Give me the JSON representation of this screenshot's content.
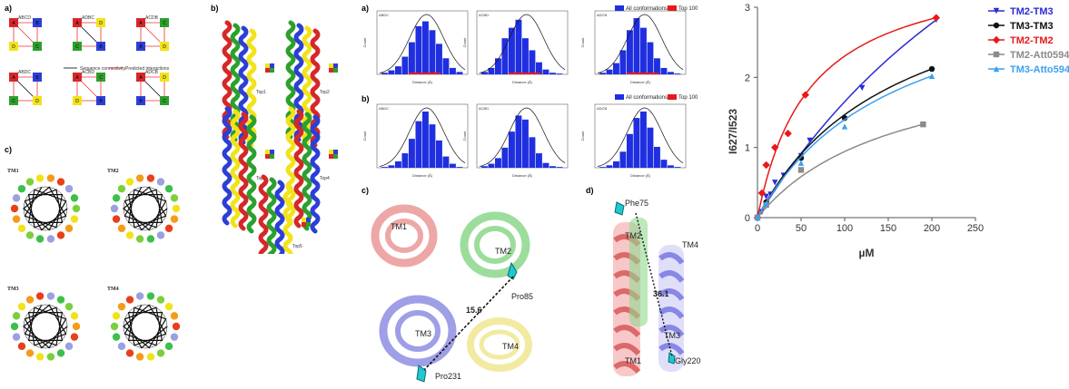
{
  "panel_labels": {
    "top_left": "a)",
    "mid_left": "c)",
    "structures": "b)",
    "hist_top": "a)",
    "hist_bottom": "b)",
    "struct_c": "c)",
    "struct_d": "d)"
  },
  "topology": {
    "top_row": [
      "ABCD",
      "ADBC",
      "ACDB"
    ],
    "bottom_row": [
      "ABDC",
      "ACBD",
      "ADCB"
    ],
    "legend_sequence": "Sequence connectivity",
    "legend_predicted": "Predicted interactions",
    "colors": {
      "A": "#d62728",
      "B": "#2b3fd6",
      "C": "#2ca02c",
      "D": "#f2e21a"
    }
  },
  "wheels": [
    "TM1",
    "TM2",
    "TM3",
    "TM4"
  ],
  "structures_b": [
    "Top1",
    "Top2",
    "Top3",
    "Top4",
    "Top5"
  ],
  "hist_legend": {
    "all": "All conformations",
    "top": "Top 100"
  },
  "histograms_top": [
    {
      "title": "ABDC"
    },
    {
      "title": "ACBD"
    },
    {
      "title": "ADCB"
    }
  ],
  "histograms_bottom": [
    {
      "title": "ABDC"
    },
    {
      "title": "ACBD"
    },
    {
      "title": "ADCB"
    }
  ],
  "hist_axis": {
    "xlabel": "Distance (Å)",
    "ylabel": "Count"
  },
  "struct_c": {
    "tm1": "TM1",
    "tm2": "TM2",
    "tm3": "TM3",
    "tm4": "TM4",
    "pro85": "Pro85",
    "pro231": "Pro231",
    "distance": "15.6"
  },
  "struct_d": {
    "phe75": "Phe75",
    "tm2": "TM2",
    "tm4": "TM4",
    "tm3": "TM3",
    "tm1": "TM1",
    "gly220": "Gly220",
    "distance": "36.1"
  },
  "chart_data": {
    "type": "line",
    "xlabel": "µM",
    "ylabel": "I627/I523",
    "xlim": [
      0,
      250
    ],
    "ylim": [
      0,
      3
    ],
    "xticks": [
      0,
      50,
      100,
      150,
      200,
      250
    ],
    "yticks": [
      0,
      1,
      2,
      3
    ],
    "legend_position": "right",
    "series": [
      {
        "name": "TM2-TM3",
        "color": "#2b2bd6",
        "marker": "triangle-down",
        "x": [
          0,
          5,
          10,
          15,
          20,
          30,
          50,
          60,
          120,
          205
        ],
        "y": [
          0,
          0.08,
          0.3,
          0.33,
          0.5,
          0.6,
          0.88,
          1.1,
          1.85,
          2.82
        ]
      },
      {
        "name": "TM3-TM3",
        "color": "#111111",
        "marker": "circle",
        "x": [
          0,
          10,
          50,
          100,
          200
        ],
        "y": [
          0,
          0.22,
          0.85,
          1.42,
          2.12
        ]
      },
      {
        "name": "TM2-TM2",
        "color": "#e8191a",
        "marker": "diamond",
        "x": [
          0,
          5,
          10,
          20,
          35,
          55,
          205
        ],
        "y": [
          0,
          0.35,
          0.75,
          1.0,
          1.2,
          1.75,
          2.85
        ]
      },
      {
        "name": "TM2-Att0594",
        "color": "#8a8a8a",
        "marker": "square",
        "x": [
          0,
          10,
          50,
          190
        ],
        "y": [
          0,
          0.18,
          0.68,
          1.33
        ]
      },
      {
        "name": "TM3-Atto594",
        "color": "#3aa0f0",
        "marker": "triangle-up",
        "x": [
          0,
          10,
          50,
          100,
          200
        ],
        "y": [
          0,
          0.2,
          0.78,
          1.3,
          2.02
        ]
      }
    ]
  }
}
